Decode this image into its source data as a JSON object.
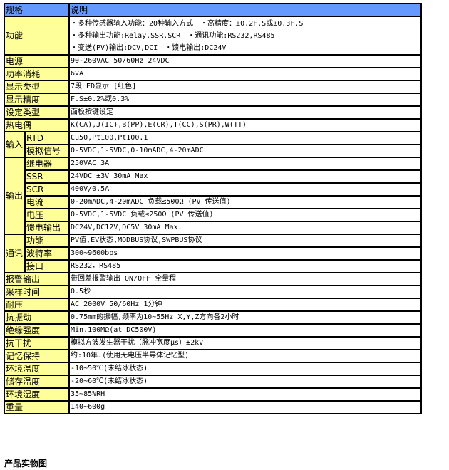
{
  "header": {
    "col1": "规格",
    "col2": "说明"
  },
  "function": {
    "label": "功能",
    "lines": [
      "・多种传感器输入功能：20种输入方式　・高精度：±0.2F.S或±0.3F.S",
      "・多种输出功能:Relay,SSR,SCR　・通讯功能:RS232,RS485",
      "・变送(PV)输出:DCV,DCI　・馈电输出:DC24V"
    ]
  },
  "rows_top": [
    {
      "label": "电源",
      "value": "90-260VAC 50/60Hz 24VDC"
    },
    {
      "label": "功率消耗",
      "value": "6VA"
    },
    {
      "label": "显示类型",
      "value": "7段LED显示 [红色]"
    },
    {
      "label": "显示精度",
      "value": "F.S±0.2%或0.3%"
    },
    {
      "label": "设定类型",
      "value": "面板按键设定"
    },
    {
      "label": "热电偶",
      "value": "K(CA),J(IC),B(PP),E(CR),T(CC),S(PR),W(TT)"
    }
  ],
  "input": {
    "label": "输入",
    "rows": [
      {
        "label": "RTD",
        "value": "Cu50,Pt100,Pt100.1"
      },
      {
        "label": "模拟信号",
        "value": "0-5VDC,1-5VDC,0-10mADC,4-20mADC"
      }
    ]
  },
  "output": {
    "label": "输出",
    "rows": [
      {
        "label": "继电器",
        "value": "250VAC 3A"
      },
      {
        "label": "SSR",
        "value": "24VDC ±3V 30mA Max"
      },
      {
        "label": "SCR",
        "value": "400V/0.5A"
      },
      {
        "label": "电流",
        "value": "0-20mADC,4-20mADC 负载≤500Ω (PV 传送值)"
      },
      {
        "label": "电压",
        "value": "0-5VDC,1-5VDC 负载≤250Ω (PV 传送值)"
      },
      {
        "label": "馈电输出",
        "value": "DC24V,DC12V,DC5V 30mA Max."
      }
    ]
  },
  "comm": {
    "label": "通讯",
    "rows": [
      {
        "label": "功能",
        "value": "PV值,EV状态,MODBUS协议,SWPBUS协议"
      },
      {
        "label": "波特率",
        "value": "300~9600bps"
      },
      {
        "label": "接口",
        "value": "RS232，RS485"
      }
    ]
  },
  "rows_bottom": [
    {
      "label": "报警输出",
      "value": "带回差报警输出 ON/OFF 全量程"
    },
    {
      "label": "采样时间",
      "value": "0.5秒"
    },
    {
      "label": "耐压",
      "value": "AC 2000V 50/60Hz 1分钟"
    },
    {
      "label": "抗振动",
      "value": "0.75mm的振幅,频率为10~55Hz X,Y,Z方向各2小时"
    },
    {
      "label": "绝缘强度",
      "value": "Min.100MΩ(at DC500V)"
    },
    {
      "label": "抗干扰",
      "value": "模拟方波发生器干扰（脉冲宽度μs）±2kV"
    },
    {
      "label": "记忆保持",
      "value": "约:10年.(使用无电压半导体记忆型)"
    },
    {
      "label": "环境温度",
      "value": "-10~50℃(未结冰状态)"
    },
    {
      "label": "储存温度",
      "value": "-20~60℃(未结冰状态)"
    },
    {
      "label": "环境湿度",
      "value": "35~85%RH"
    },
    {
      "label": "重量",
      "value": "140~600g"
    }
  ],
  "footer": "产品实物图",
  "colors": {
    "header_bg": "#6699ff",
    "label_bg": "#ffff99"
  }
}
